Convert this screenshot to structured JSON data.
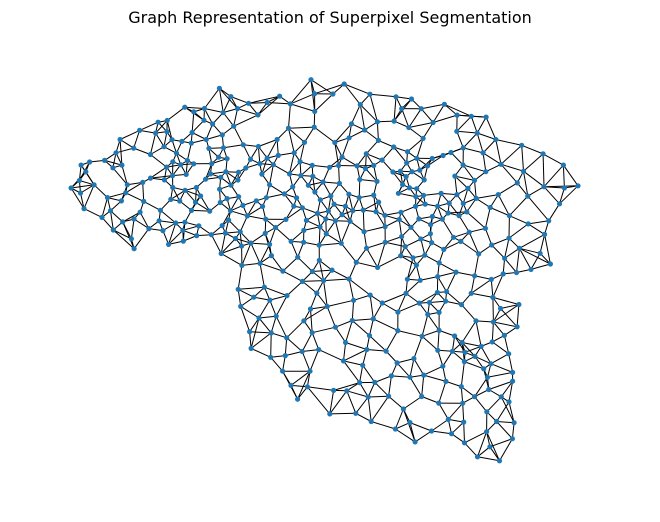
{
  "figure": {
    "title": "Graph Representation of Superpixel Segmentation"
  },
  "colors": {
    "node": "#1f77b4",
    "edge": "#000000",
    "background": "#ffffff"
  },
  "chart_data": {
    "type": "network_graph",
    "title": "Graph Representation of Superpixel Segmentation",
    "axes_visible": false,
    "legend": "none"
  }
}
